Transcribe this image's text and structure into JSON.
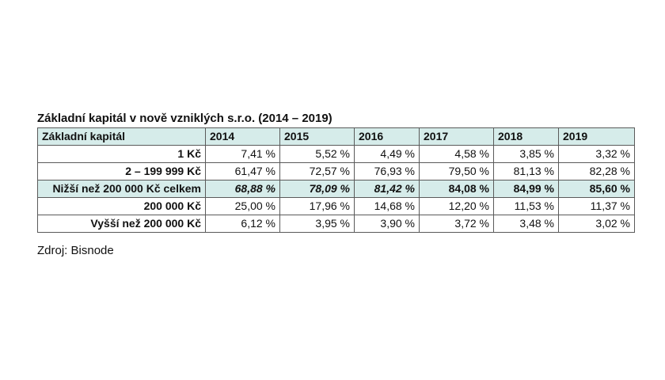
{
  "title": "Základní kapitál v nově vzniklých s.r.o. (2014 – 2019)",
  "table": {
    "header": {
      "label": "Základní kapitál",
      "years": [
        "2014",
        "2015",
        "2016",
        "2017",
        "2018",
        "2019"
      ]
    },
    "rows": [
      {
        "label": "1 Kč",
        "values": [
          "7,41 %",
          "5,52 %",
          "4,49 %",
          "4,58 %",
          "3,85 %",
          "3,32 %"
        ]
      },
      {
        "label": "2 – 199 999 Kč",
        "values": [
          "61,47 %",
          "72,57 %",
          "76,93 %",
          "79,50 %",
          "81,13 %",
          "82,28 %"
        ]
      },
      {
        "label": "Nižší než 200 000 Kč celkem",
        "values": [
          "68,88 %",
          "78,09 %",
          "81,42 %",
          "84,08 %",
          "84,99 %",
          "85,60 %"
        ]
      },
      {
        "label": "200 000 Kč",
        "values": [
          "25,00 %",
          "17,96 %",
          "14,68 %",
          "12,20 %",
          "11,53 %",
          "11,37 %"
        ]
      },
      {
        "label": "Vyšší než 200 000 Kč",
        "values": [
          "6,12 %",
          "3,95 %",
          "3,90 %",
          "3,72 %",
          "3,48 %",
          "3,02 %"
        ]
      }
    ]
  },
  "source": "Zdroj: Bisnode",
  "colors": {
    "highlight": "#d6ecea",
    "border": "#5a5a5a"
  }
}
